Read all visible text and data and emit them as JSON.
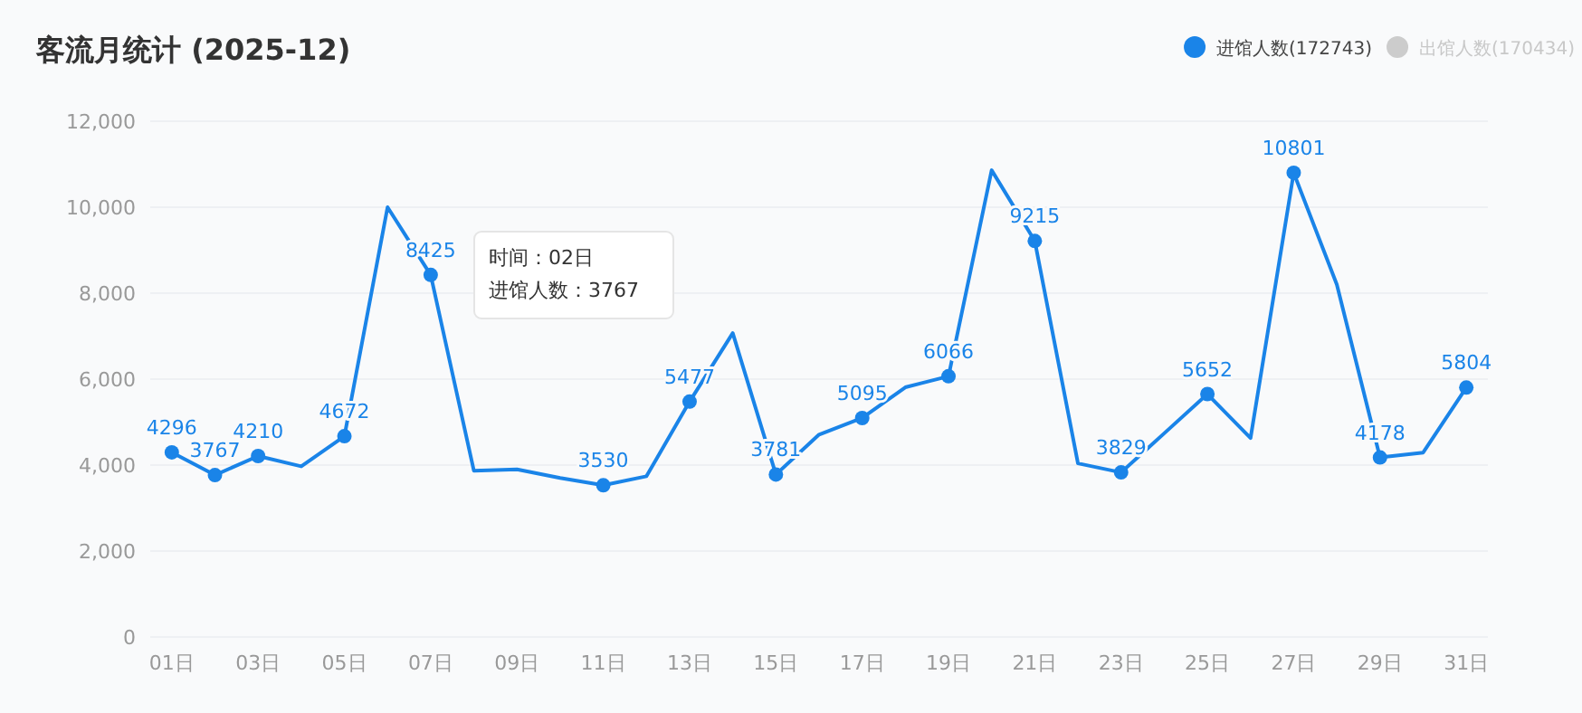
{
  "chart_data": {
    "type": "line",
    "title": "客流月统计 (2025-12)",
    "categories": [
      "01日",
      null,
      "03日",
      null,
      "05日",
      null,
      "07日",
      null,
      "09日",
      null,
      "11日",
      null,
      "13日",
      null,
      "15日",
      null,
      "17日",
      null,
      "19日",
      null,
      "21日",
      null,
      "23日",
      null,
      "25日",
      null,
      "27日",
      null,
      "29日",
      null,
      "31日"
    ],
    "series": [
      {
        "name": "进馆人数(172743)",
        "color": "#1a84e8",
        "values": [
          4296,
          3767,
          4210,
          3970,
          4672,
          10000,
          8425,
          3870,
          3900,
          3700,
          3530,
          3740,
          5477,
          7070,
          3781,
          4710,
          5095,
          5810,
          6066,
          10860,
          9215,
          4040,
          3829,
          4740,
          5652,
          4630,
          10801,
          8200,
          4178,
          4290,
          5804
        ],
        "value_labels": [
          "4296",
          "3767",
          "4210",
          null,
          "4672",
          null,
          "8425",
          null,
          null,
          null,
          "3530",
          null,
          "5477",
          null,
          "3781",
          null,
          "5095",
          null,
          "6066",
          null,
          "9215",
          null,
          "3829",
          null,
          "5652",
          null,
          "10801",
          null,
          "4178",
          null,
          "5804"
        ]
      },
      {
        "name": "出馆人数(170434)",
        "color": "#cccccc",
        "values": [
          null,
          null,
          null,
          null,
          null,
          null,
          null,
          null,
          null,
          null,
          null,
          null,
          null,
          null,
          null,
          null,
          null,
          null,
          null,
          null,
          null,
          null,
          null,
          null,
          null,
          null,
          null,
          null,
          null,
          null,
          null
        ]
      }
    ],
    "ylim": [
      0,
      12000
    ],
    "yticks": [
      {
        "value": 0,
        "label": "0"
      },
      {
        "value": 2000,
        "label": "2,000"
      },
      {
        "value": 4000,
        "label": "4,000"
      },
      {
        "value": 6000,
        "label": "6,000"
      },
      {
        "value": 8000,
        "label": "8,000"
      },
      {
        "value": 10000,
        "label": "10,000"
      },
      {
        "value": 12000,
        "label": "12,000"
      }
    ],
    "grid": "y",
    "legend": "top right",
    "marker": "circle",
    "line_style": "solid",
    "annotations": [
      "时间：02日",
      "进馆人数：3767"
    ]
  }
}
